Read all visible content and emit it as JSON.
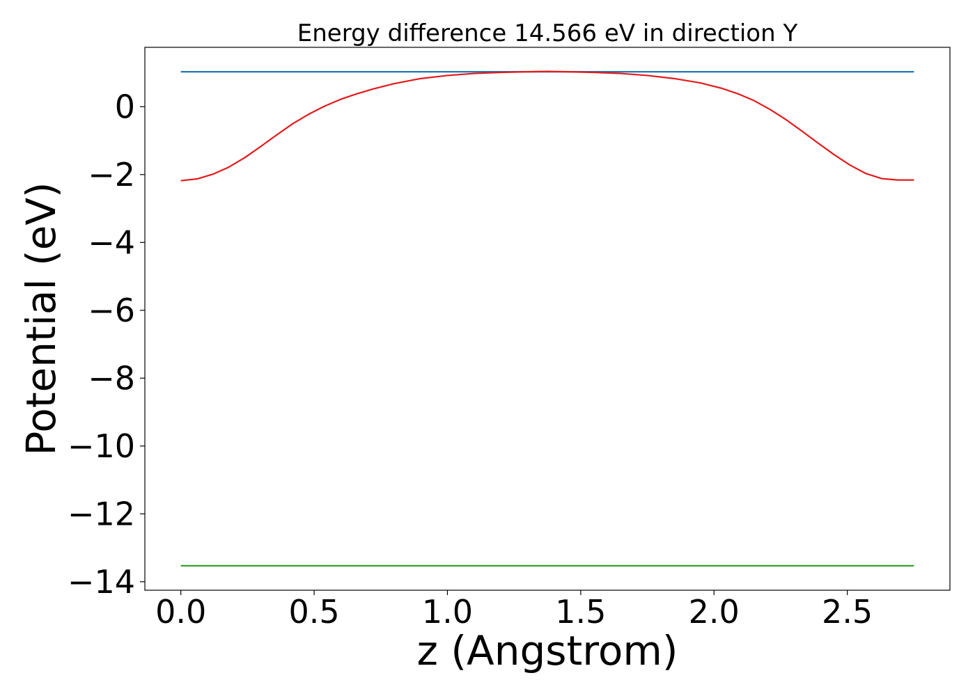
{
  "chart_data": {
    "type": "line",
    "title": "Energy difference 14.566 eV in direction Y",
    "xlabel": "z (Angstrom)",
    "ylabel": "Potential (eV)",
    "xlim": [
      -0.135,
      2.885
    ],
    "ylim": [
      -14.25,
      1.75
    ],
    "xticks": [
      0.0,
      0.5,
      1.0,
      1.5,
      2.0,
      2.5
    ],
    "xtick_labels": [
      "0.0",
      "0.5",
      "1.0",
      "1.5",
      "2.0",
      "2.5"
    ],
    "yticks": [
      0,
      -2,
      -4,
      -6,
      -8,
      -10,
      -12,
      -14
    ],
    "ytick_labels": [
      "0",
      "−2",
      "−4",
      "−6",
      "−8",
      "−10",
      "−12",
      "−14"
    ],
    "grid": false,
    "series": [
      {
        "color": "#1f77b4",
        "x": [
          0.0,
          2.75
        ],
        "y": [
          1.03,
          1.03
        ]
      },
      {
        "color": "#e31a1c",
        "x": [
          0.0,
          0.06,
          0.12,
          0.18,
          0.24,
          0.3,
          0.36,
          0.42,
          0.48,
          0.54,
          0.6,
          0.66,
          0.72,
          0.8,
          0.9,
          1.0,
          1.1,
          1.2,
          1.3,
          1.375,
          1.45,
          1.55,
          1.65,
          1.75,
          1.85,
          1.95,
          2.03,
          2.09,
          2.15,
          2.21,
          2.27,
          2.33,
          2.39,
          2.45,
          2.51,
          2.57,
          2.63,
          2.69,
          2.75
        ],
        "y": [
          -2.18,
          -2.13,
          -1.99,
          -1.78,
          -1.5,
          -1.17,
          -0.83,
          -0.5,
          -0.22,
          0.02,
          0.22,
          0.38,
          0.52,
          0.68,
          0.83,
          0.92,
          0.98,
          1.01,
          1.03,
          1.04,
          1.03,
          1.01,
          0.98,
          0.92,
          0.83,
          0.7,
          0.54,
          0.38,
          0.18,
          -0.08,
          -0.38,
          -0.72,
          -1.07,
          -1.41,
          -1.72,
          -1.97,
          -2.12,
          -2.16,
          -2.16
        ]
      },
      {
        "color": "#33a02c",
        "x": [
          0.0,
          2.75
        ],
        "y": [
          -13.53,
          -13.53
        ]
      }
    ]
  }
}
